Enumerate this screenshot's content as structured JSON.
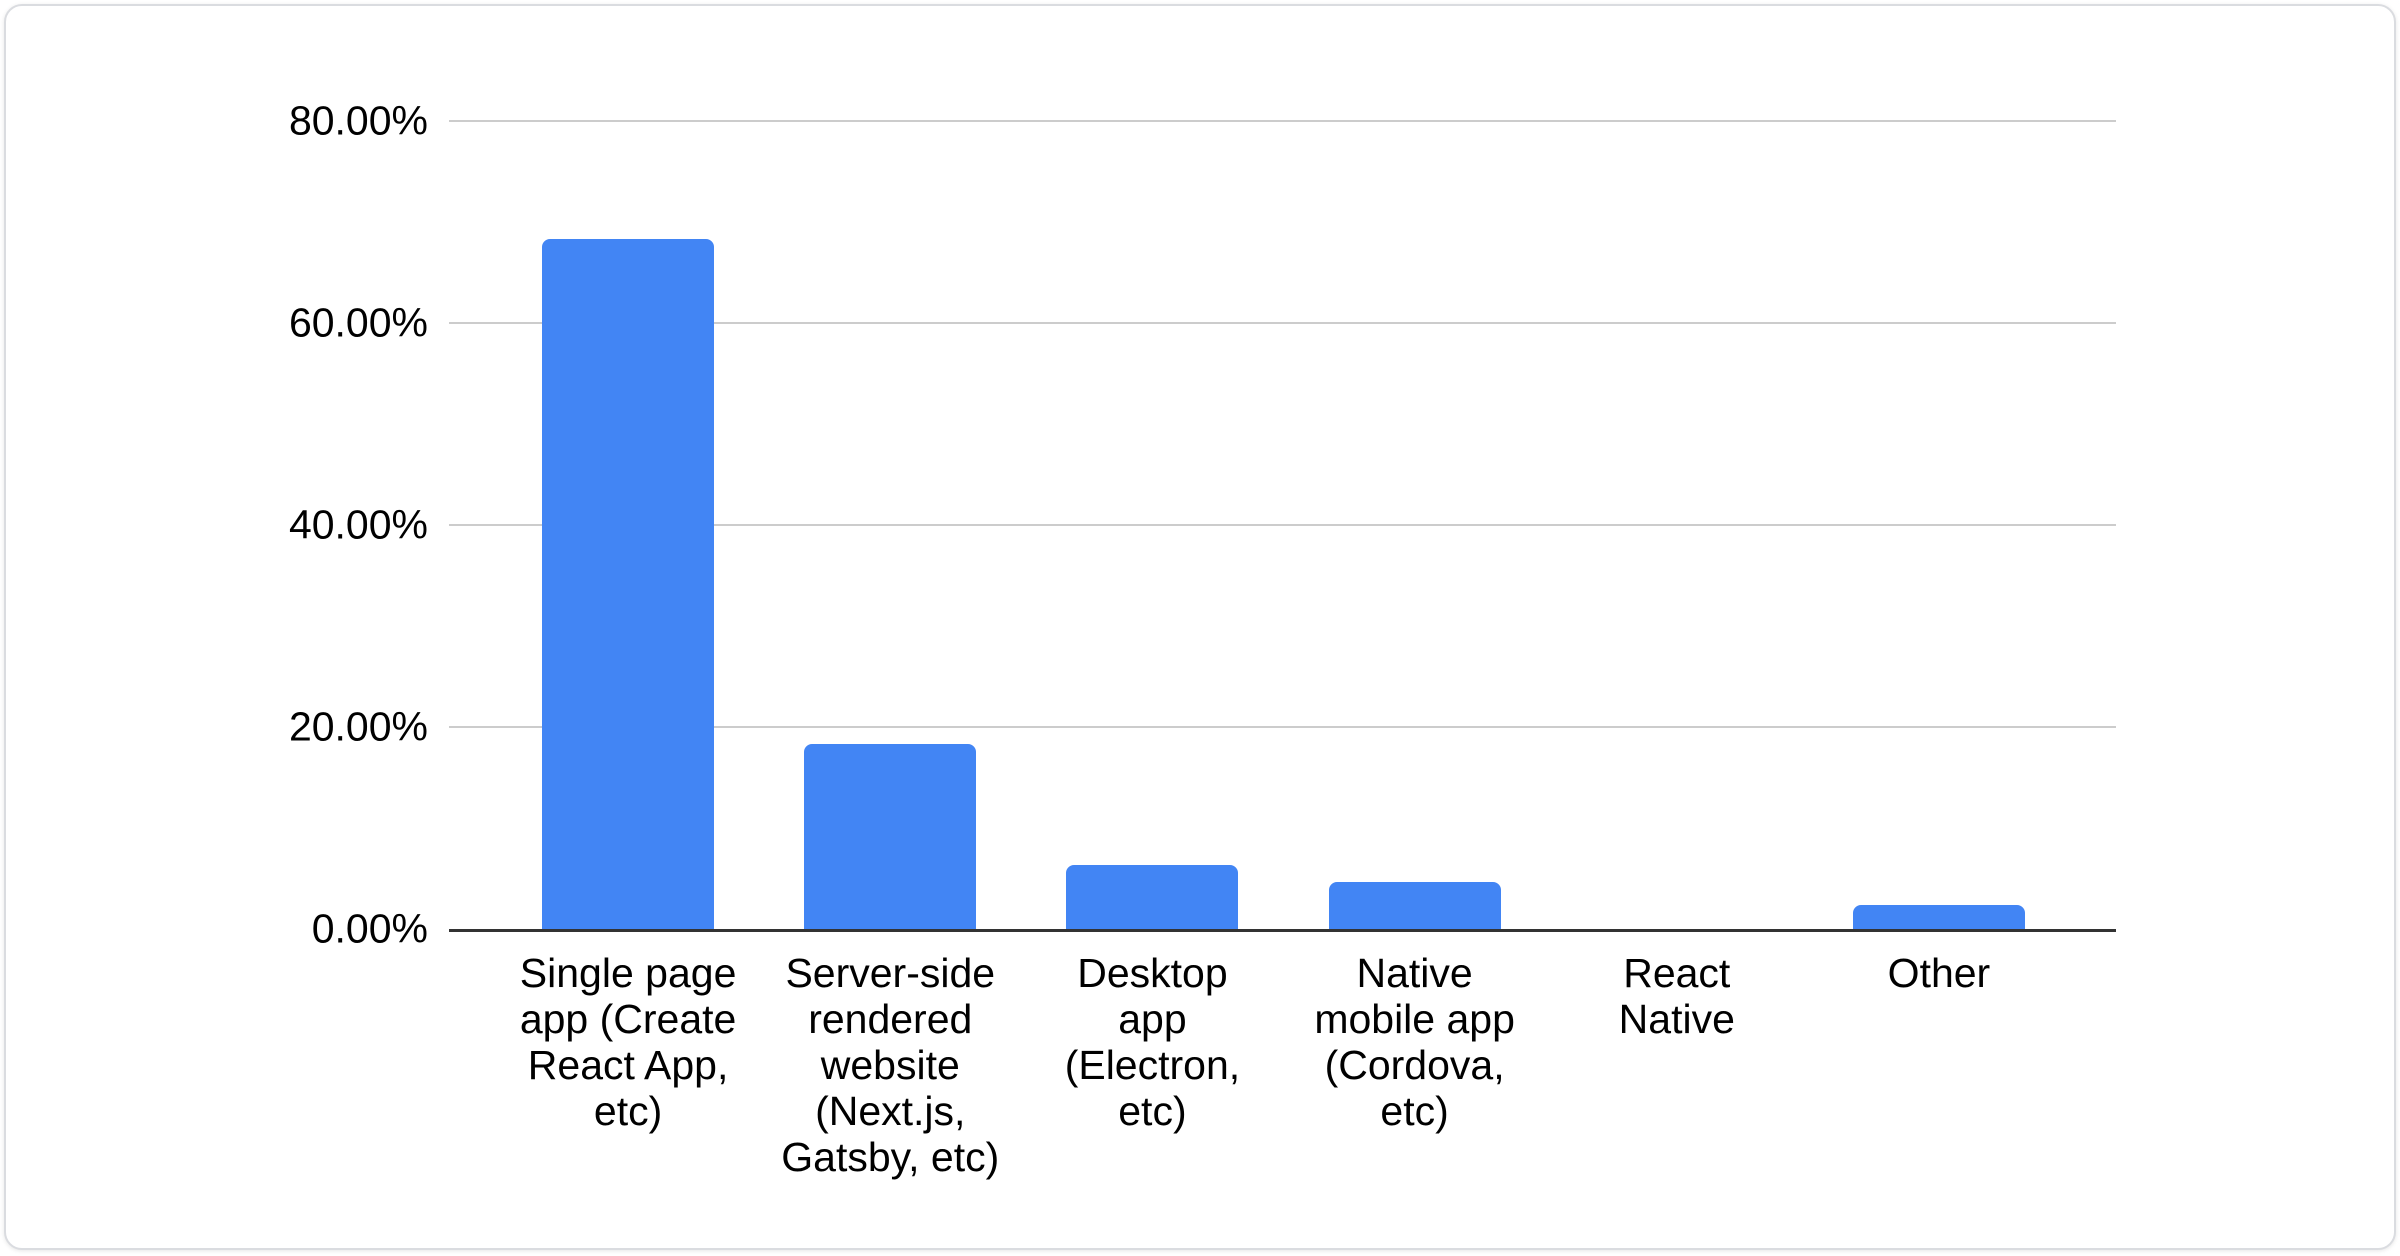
{
  "chart_data": {
    "type": "bar",
    "title": "",
    "xlabel": "",
    "ylabel": "",
    "categories": [
      "Single page app (Create React App, etc)",
      "Server-side rendered website (Next.js, Gatsby, etc)",
      "Desktop app (Electron, etc)",
      "Native mobile app (Cordova, etc)",
      "React Native",
      "Other"
    ],
    "category_labels_wrapped": [
      "Single page\napp (Create\nReact App,\netc)",
      "Server-side\nrendered\nwebsite\n(Next.js,\nGatsby, etc)",
      "Desktop\napp\n(Electron,\netc)",
      "Native\nmobile app\n(Cordova,\netc)",
      "React\nNative",
      "Other"
    ],
    "values": [
      68.3,
      18.3,
      6.3,
      4.7,
      0.0,
      2.4
    ],
    "value_unit": "%",
    "ylim": [
      0,
      80
    ],
    "ytick_step": 20,
    "ytick_labels": [
      "0.00%",
      "20.00%",
      "40.00%",
      "60.00%",
      "80.00%"
    ],
    "grid": true,
    "legend_position": "none",
    "bar_color": "#4285f4"
  },
  "colors": {
    "bar_fill": "#4285f4",
    "gridline": "#cccccc",
    "axis_line": "#333333",
    "text": "#000000",
    "card_background": "#ffffff",
    "card_border": "#dadce0"
  }
}
